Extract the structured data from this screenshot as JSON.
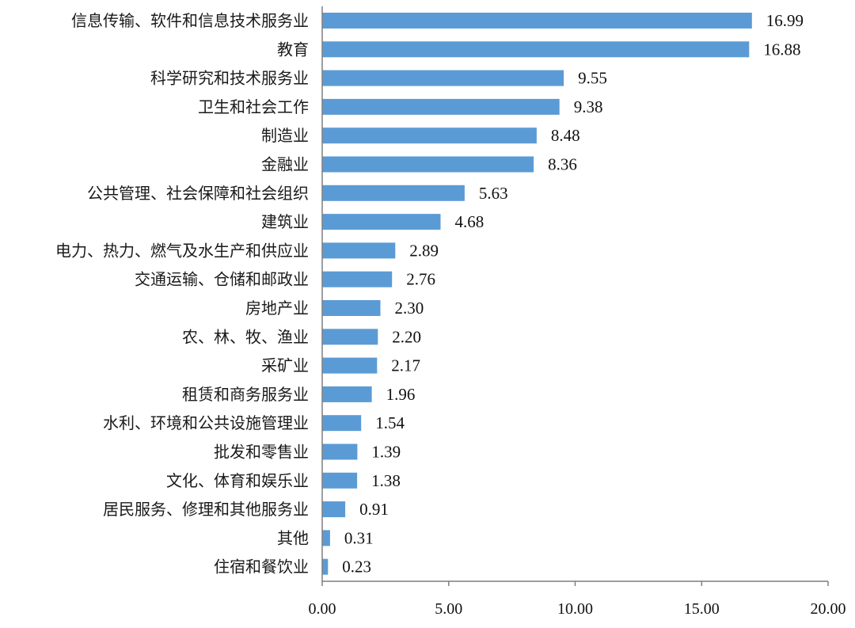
{
  "chart_data": {
    "type": "bar",
    "orientation": "horizontal",
    "categories": [
      "信息传输、软件和信息技术服务业",
      "教育",
      "科学研究和技术服务业",
      "卫生和社会工作",
      "制造业",
      "金融业",
      "公共管理、社会保障和社会组织",
      "建筑业",
      "电力、热力、燃气及水生产和供应业",
      "交通运输、仓储和邮政业",
      "房地产业",
      "农、林、牧、渔业",
      "采矿业",
      "租赁和商务服务业",
      "水利、环境和公共设施管理业",
      "批发和零售业",
      "文化、体育和娱乐业",
      "居民服务、修理和其他服务业",
      "其他",
      "住宿和餐饮业"
    ],
    "values": [
      16.99,
      16.88,
      9.55,
      9.38,
      8.48,
      8.36,
      5.63,
      4.68,
      2.89,
      2.76,
      2.3,
      2.2,
      2.17,
      1.96,
      1.54,
      1.39,
      1.38,
      0.91,
      0.31,
      0.23
    ],
    "value_labels": [
      "16.99",
      "16.88",
      "9.55",
      "9.38",
      "8.48",
      "8.36",
      "5.63",
      "4.68",
      "2.89",
      "2.76",
      "2.30",
      "2.20",
      "2.17",
      "1.96",
      "1.54",
      "1.39",
      "1.38",
      "0.91",
      "0.31",
      "0.23"
    ],
    "xlim": [
      0,
      20
    ],
    "xticks": [
      0,
      5,
      10,
      15,
      20
    ],
    "xtick_labels": [
      "0.00",
      "5.00",
      "10.00",
      "15.00",
      "20.00"
    ],
    "title": "",
    "xlabel": "",
    "ylabel": "",
    "grid": false,
    "legend": "none",
    "bar_color": "#5b9bd5",
    "axis_color": "#7f7f7f"
  }
}
